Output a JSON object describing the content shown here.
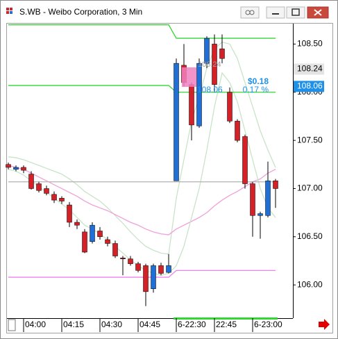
{
  "window": {
    "title": "S.WB - Weibo Corporation, 3 Min"
  },
  "chart_data": {
    "type": "candlestick",
    "categories": [
      null,
      null,
      "04:00",
      null,
      null,
      null,
      null,
      "04:15",
      null,
      null,
      null,
      null,
      "04:30",
      null,
      null,
      null,
      null,
      "04:45",
      null,
      null,
      null,
      null,
      "6-22:30",
      null,
      null,
      null,
      null,
      "22:45",
      null,
      null,
      null,
      null,
      "6-23:00",
      null,
      null,
      null
    ],
    "open": [
      107.25,
      107.2,
      107.22,
      107.15,
      107.05,
      107.0,
      106.94,
      106.9,
      106.83,
      106.65,
      106.55,
      106.45,
      106.56,
      106.47,
      106.43,
      106.28,
      106.27,
      106.22,
      106.2,
      105.96,
      106.2,
      106.13,
      107.08,
      108.28,
      108.08,
      107.65,
      108.3,
      108.5,
      108.45,
      108.0,
      107.7,
      107.54,
      107.05,
      106.72,
      106.72,
      107.08
    ],
    "high": [
      107.27,
      107.24,
      107.24,
      107.18,
      107.07,
      107.03,
      106.97,
      106.92,
      106.86,
      106.68,
      106.58,
      106.65,
      106.6,
      106.5,
      106.46,
      106.3,
      106.3,
      106.24,
      106.22,
      106.22,
      106.23,
      106.32,
      108.35,
      108.5,
      108.1,
      108.35,
      108.58,
      108.6,
      108.6,
      108.05,
      107.72,
      107.56,
      107.07,
      106.76,
      107.28,
      107.1
    ],
    "low": [
      107.2,
      107.18,
      107.16,
      106.99,
      106.96,
      106.93,
      106.85,
      106.84,
      106.6,
      106.58,
      106.33,
      106.43,
      106.47,
      106.4,
      106.28,
      106.1,
      106.2,
      106.13,
      105.78,
      105.92,
      106.1,
      106.12,
      107.08,
      108.06,
      107.5,
      107.63,
      108.25,
      108.0,
      108.3,
      107.68,
      107.48,
      107.0,
      106.5,
      106.48,
      106.7,
      106.8
    ],
    "close": [
      107.22,
      107.22,
      107.19,
      107.0,
      106.98,
      106.95,
      106.88,
      106.87,
      106.65,
      106.62,
      106.34,
      106.62,
      106.5,
      106.43,
      106.3,
      106.27,
      106.22,
      106.15,
      105.93,
      106.2,
      106.12,
      106.2,
      108.3,
      108.1,
      107.66,
      108.3,
      108.56,
      108.08,
      108.35,
      107.7,
      107.5,
      107.05,
      106.72,
      106.74,
      107.08,
      107.0
    ],
    "up_color": "#1f6fd6",
    "down_color": "#d42128",
    "overlays": [
      {
        "color": "#c9e3c9",
        "values": [
          107.33,
          107.32,
          107.3,
          107.27,
          107.24,
          107.21,
          107.18,
          107.15,
          107.1,
          107.04,
          106.97,
          106.92,
          106.87,
          106.8,
          106.72,
          106.64,
          106.55,
          106.47,
          106.4,
          106.36,
          106.33,
          106.32,
          106.9,
          107.3,
          107.7,
          107.95,
          108.25,
          108.45,
          108.52,
          108.5,
          108.35,
          108.1,
          107.85,
          107.6,
          107.4,
          107.22
        ]
      },
      {
        "color": "#f0a0d8",
        "values": [
          107.24,
          107.22,
          107.2,
          107.16,
          107.12,
          107.08,
          107.04,
          107.0,
          106.96,
          106.92,
          106.87,
          106.83,
          106.8,
          106.77,
          106.73,
          106.69,
          106.65,
          106.62,
          106.58,
          106.55,
          106.53,
          106.52,
          106.58,
          106.62,
          106.66,
          106.7,
          106.75,
          106.82,
          106.88,
          106.93,
          106.97,
          107.02,
          107.07,
          107.1,
          107.16,
          107.2
        ]
      },
      {
        "color": "#c9e3c9",
        "values": [
          107.2,
          107.18,
          107.14,
          107.08,
          107.02,
          106.96,
          106.9,
          106.84,
          106.78,
          106.7,
          106.62,
          106.58,
          106.53,
          106.47,
          106.4,
          106.33,
          106.26,
          106.2,
          106.15,
          106.12,
          106.1,
          106.12,
          106.2,
          106.4,
          106.7,
          107.0,
          107.4,
          107.85,
          108.2,
          108.1,
          107.9,
          107.6,
          107.3,
          107.0,
          106.8,
          106.7
        ]
      },
      {
        "color": "#33d633",
        "values": [
          108.7,
          108.7,
          108.7,
          108.7,
          108.7,
          108.7,
          108.7,
          108.7,
          108.7,
          108.7,
          108.7,
          108.7,
          108.7,
          108.7,
          108.7,
          108.7,
          108.7,
          108.7,
          108.7,
          108.7,
          108.7,
          108.7,
          108.56,
          108.56,
          108.56,
          108.56,
          108.56,
          108.56,
          108.56,
          108.56,
          108.56,
          108.56,
          108.56,
          108.56,
          108.56,
          108.56
        ]
      },
      {
        "color": "#33d633",
        "values": [
          108.07,
          108.07,
          108.07,
          108.07,
          108.07,
          108.07,
          108.07,
          108.07,
          108.07,
          108.07,
          108.07,
          108.07,
          108.07,
          108.07,
          108.07,
          108.07,
          108.07,
          108.07,
          108.07,
          108.07,
          108.07,
          108.07,
          108.0,
          108.0,
          108.0,
          108.0,
          108.0,
          108.0,
          108.0,
          108.0,
          108.0,
          108.0,
          108.0,
          108.0,
          108.0,
          108.0
        ]
      },
      {
        "color": "#ee82ee",
        "values": [
          106.08,
          106.08,
          106.08,
          106.08,
          106.08,
          106.08,
          106.08,
          106.08,
          106.08,
          106.08,
          106.08,
          106.08,
          106.08,
          106.08,
          106.08,
          106.08,
          106.08,
          106.08,
          106.08,
          106.08,
          106.08,
          106.08,
          106.15,
          106.15,
          106.15,
          106.15,
          106.15,
          106.15,
          106.15,
          106.15,
          106.15,
          106.15,
          106.15,
          106.15,
          106.15,
          106.15
        ]
      },
      {
        "color": "#b0b0b0",
        "values": [
          107.07,
          107.07,
          107.07,
          107.07,
          107.07,
          107.07,
          107.07,
          107.07,
          107.07,
          107.07,
          107.07,
          107.07,
          107.07,
          107.07,
          107.07,
          107.07,
          107.07,
          107.07,
          107.07,
          107.07,
          107.07,
          107.07,
          107.07,
          107.07,
          107.07,
          107.07,
          107.07,
          107.07,
          107.07,
          107.07,
          107.07,
          107.07,
          107.07,
          107.07,
          107.07,
          107.07
        ]
      }
    ],
    "ylim": [
      105.655,
      108.712
    ],
    "yticks": [
      {
        "value": 106,
        "label": "106.00"
      },
      {
        "value": 106.5,
        "label": "106.50"
      },
      {
        "value": 107,
        "label": "107.00"
      },
      {
        "value": 107.5,
        "label": "107.50"
      },
      {
        "value": 108,
        "label": "108.00"
      },
      {
        "value": 108.5,
        "label": "108.50"
      }
    ],
    "price_markers": [
      {
        "value": 108.24,
        "color": "#e4e4e4",
        "text_color": "#000000"
      },
      {
        "value": 108.06,
        "color": "#1e90e8",
        "text_color": "#ffffff"
      }
    ],
    "annotations": {
      "change": "$0.18",
      "percent": "0.17 %",
      "price": "108.06",
      "ref_price": "108.24"
    }
  }
}
